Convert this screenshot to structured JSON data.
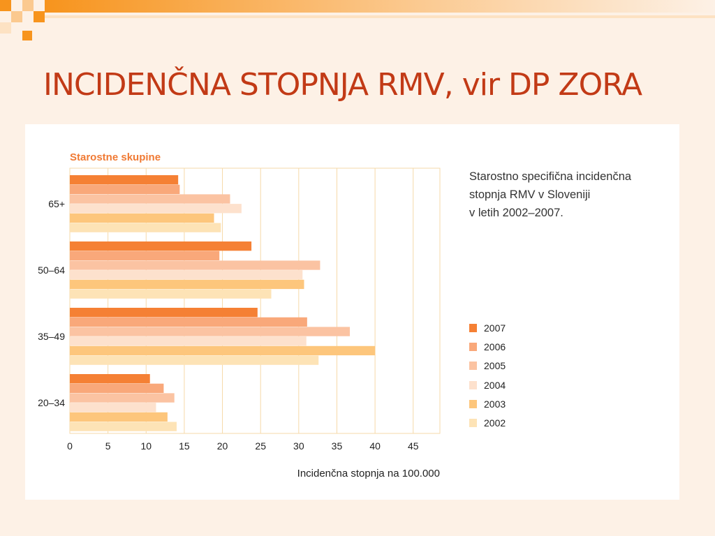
{
  "slide": {
    "title": "INCIDENČNA STOPNJA RMV, vir DP ZORA"
  },
  "description": [
    "Starostno specifična incidenčna",
    "stopnja RMV v Sloveniji",
    "v letih 2002–2007."
  ],
  "colors": {
    "title": "#c23a16",
    "axis_title": "#f07a34",
    "series": [
      "#f58034",
      "#f9a87a",
      "#fbc3a2",
      "#fde1cd",
      "#fdc67c",
      "#fde3b6"
    ]
  },
  "chart_data": {
    "type": "bar",
    "orientation": "horizontal",
    "categories": [
      "65+",
      "50–64",
      "35–49",
      "20–34"
    ],
    "series": [
      {
        "name": "2007",
        "values": [
          14.2,
          23.8,
          24.6,
          10.5
        ]
      },
      {
        "name": "2006",
        "values": [
          14.4,
          19.6,
          31.1,
          12.3
        ]
      },
      {
        "name": "2005",
        "values": [
          21.0,
          32.8,
          36.7,
          13.7
        ]
      },
      {
        "name": "2004",
        "values": [
          22.5,
          30.5,
          31.0,
          11.3
        ]
      },
      {
        "name": "2003",
        "values": [
          18.9,
          30.7,
          40.0,
          12.8
        ]
      },
      {
        "name": "2002",
        "values": [
          19.8,
          26.4,
          32.6,
          14.0
        ]
      }
    ],
    "y_axis_title": "Starostne skupine",
    "xlabel": "Incidenčna stopnja na 100.000",
    "xticks": [
      0,
      5,
      10,
      15,
      20,
      25,
      30,
      35,
      40,
      45
    ],
    "xlim": [
      0,
      48.5
    ],
    "grid": true,
    "legend": {
      "placement": "right",
      "entries": [
        "2007",
        "2006",
        "2005",
        "2004",
        "2003",
        "2002"
      ]
    }
  }
}
